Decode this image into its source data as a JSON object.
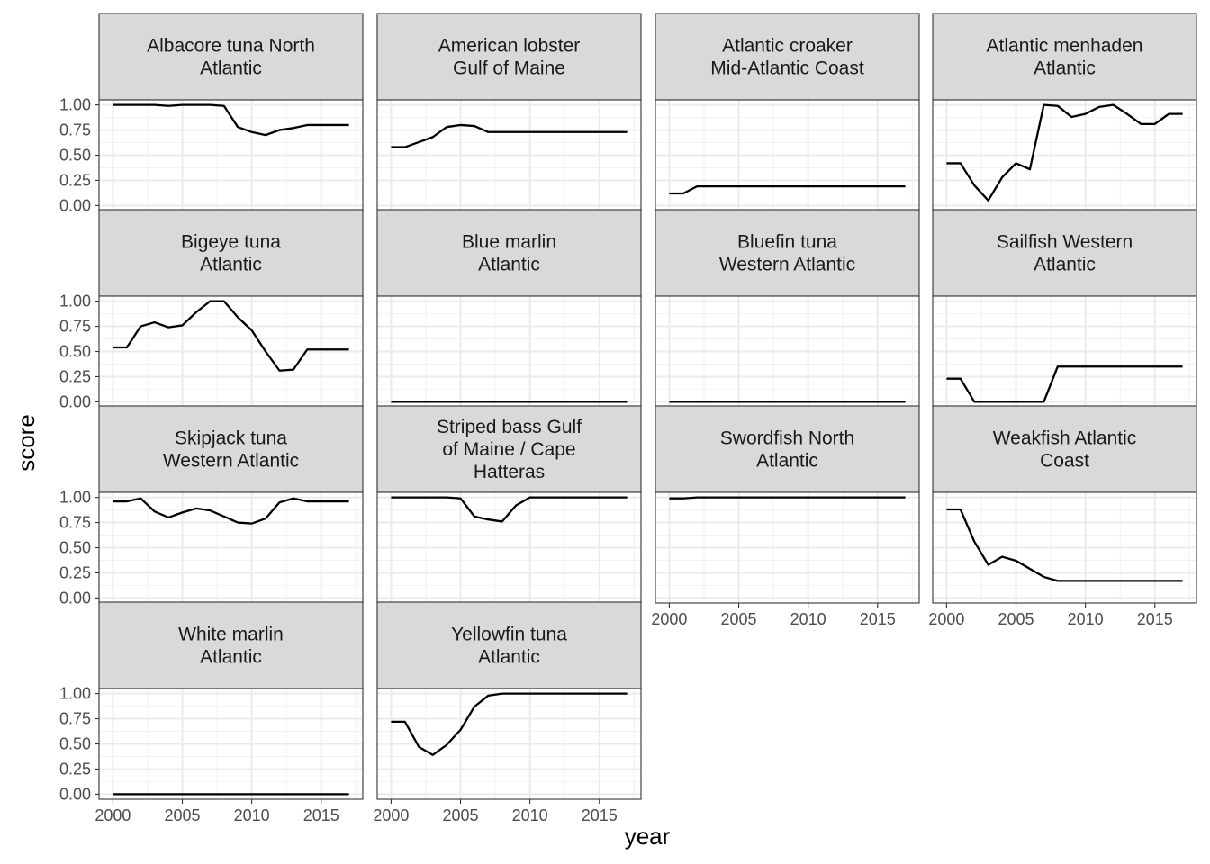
{
  "chart_data": {
    "type": "line",
    "xlabel": "year",
    "ylabel": "score",
    "xlim": [
      1999,
      2018
    ],
    "ylim": [
      -0.05,
      1.05
    ],
    "x_ticks": [
      2000,
      2005,
      2010,
      2015
    ],
    "y_ticks": [
      0,
      0.25,
      0.5,
      0.75,
      1
    ],
    "y_tick_labels": [
      "0.00",
      "0.25",
      "0.50",
      "0.75",
      "1.00"
    ],
    "grid": true,
    "x": [
      2000,
      2001,
      2002,
      2003,
      2004,
      2005,
      2006,
      2007,
      2008,
      2009,
      2010,
      2011,
      2012,
      2013,
      2014,
      2015,
      2016,
      2017
    ],
    "panels": [
      {
        "title": [
          "Albacore tuna North",
          "Atlantic"
        ],
        "values": [
          1.0,
          1.0,
          1.0,
          1.0,
          0.99,
          1.0,
          1.0,
          1.0,
          0.99,
          0.78,
          0.73,
          0.7,
          0.75,
          0.77,
          0.8,
          0.8,
          0.8,
          0.8
        ]
      },
      {
        "title": [
          "American lobster",
          "Gulf of Maine"
        ],
        "values": [
          0.58,
          0.58,
          0.63,
          0.68,
          0.78,
          0.8,
          0.79,
          0.73,
          0.73,
          0.73,
          0.73,
          0.73,
          0.73,
          0.73,
          0.73,
          0.73,
          0.73,
          0.73
        ]
      },
      {
        "title": [
          "Atlantic croaker",
          "Mid-Atlantic Coast"
        ],
        "values": [
          0.12,
          0.12,
          0.19,
          0.19,
          0.19,
          0.19,
          0.19,
          0.19,
          0.19,
          0.19,
          0.19,
          0.19,
          0.19,
          0.19,
          0.19,
          0.19,
          0.19,
          0.19
        ]
      },
      {
        "title": [
          "Atlantic menhaden",
          "Atlantic"
        ],
        "values": [
          0.42,
          0.42,
          0.2,
          0.05,
          0.28,
          0.42,
          0.36,
          1.0,
          0.99,
          0.88,
          0.91,
          0.98,
          1.0,
          0.91,
          0.81,
          0.81,
          0.91,
          0.91
        ]
      },
      {
        "title": [
          "Bigeye tuna",
          "Atlantic"
        ],
        "values": [
          0.54,
          0.54,
          0.75,
          0.79,
          0.74,
          0.76,
          0.89,
          1.0,
          1.0,
          0.84,
          0.71,
          0.5,
          0.31,
          0.32,
          0.52,
          0.52,
          0.52,
          0.52
        ]
      },
      {
        "title": [
          "Blue marlin",
          "Atlantic"
        ],
        "values": [
          0,
          0,
          0,
          0,
          0,
          0,
          0,
          0,
          0,
          0,
          0,
          0,
          0,
          0,
          0,
          0,
          0,
          0
        ]
      },
      {
        "title": [
          "Bluefin tuna",
          "Western Atlantic"
        ],
        "values": [
          0,
          0,
          0,
          0,
          0,
          0,
          0,
          0,
          0,
          0,
          0,
          0,
          0,
          0,
          0,
          0,
          0,
          0
        ]
      },
      {
        "title": [
          "Sailfish Western",
          "Atlantic"
        ],
        "values": [
          0.23,
          0.23,
          0,
          0,
          0,
          0,
          0,
          0,
          0.35,
          0.35,
          0.35,
          0.35,
          0.35,
          0.35,
          0.35,
          0.35,
          0.35,
          0.35
        ]
      },
      {
        "title": [
          "Skipjack tuna",
          "Western Atlantic"
        ],
        "values": [
          0.96,
          0.96,
          0.99,
          0.86,
          0.8,
          0.85,
          0.89,
          0.87,
          0.81,
          0.75,
          0.74,
          0.79,
          0.95,
          0.99,
          0.96,
          0.96,
          0.96,
          0.96
        ]
      },
      {
        "title": [
          "Striped bass Gulf",
          "of Maine / Cape",
          "Hatteras"
        ],
        "values": [
          1.0,
          1.0,
          1.0,
          1.0,
          1.0,
          0.99,
          0.81,
          0.78,
          0.76,
          0.92,
          1.0,
          1.0,
          1.0,
          1.0,
          1.0,
          1.0,
          1.0,
          1.0
        ]
      },
      {
        "title": [
          "Swordfish North",
          "Atlantic"
        ],
        "values": [
          0.99,
          0.99,
          1.0,
          1.0,
          1.0,
          1.0,
          1.0,
          1.0,
          1.0,
          1.0,
          1.0,
          1.0,
          1.0,
          1.0,
          1.0,
          1.0,
          1.0,
          1.0
        ]
      },
      {
        "title": [
          "Weakfish Atlantic",
          "Coast"
        ],
        "values": [
          0.88,
          0.88,
          0.56,
          0.33,
          0.41,
          0.37,
          0.29,
          0.21,
          0.17,
          0.17,
          0.17,
          0.17,
          0.17,
          0.17,
          0.17,
          0.17,
          0.17,
          0.17
        ]
      },
      {
        "title": [
          "White marlin",
          "Atlantic"
        ],
        "values": [
          0,
          0,
          0,
          0,
          0,
          0,
          0,
          0,
          0,
          0,
          0,
          0,
          0,
          0,
          0,
          0,
          0,
          0
        ]
      },
      {
        "title": [
          "Yellowfin tuna",
          "Atlantic"
        ],
        "values": [
          0.72,
          0.72,
          0.47,
          0.39,
          0.49,
          0.64,
          0.87,
          0.98,
          1.0,
          1.0,
          1.0,
          1.0,
          1.0,
          1.0,
          1.0,
          1.0,
          1.0,
          1.0
        ]
      }
    ]
  }
}
